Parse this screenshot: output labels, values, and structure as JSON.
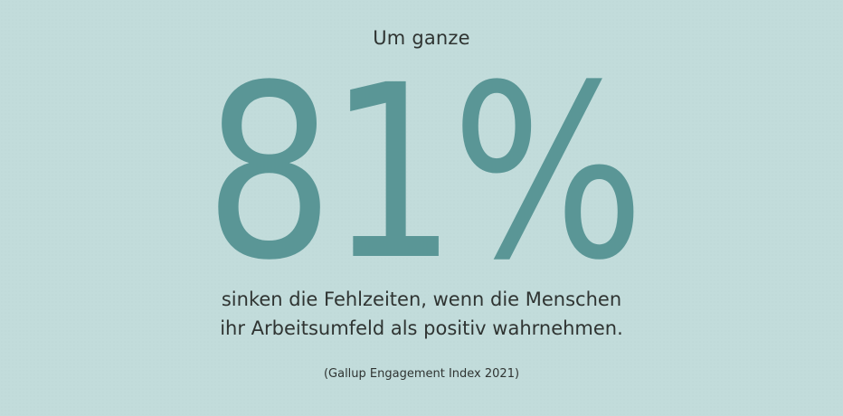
{
  "headline_intro": "Um ganze",
  "stat_value": "81%",
  "claim_line_1": "sinken die Fehlzeiten, wenn die Menschen",
  "claim_line_2": "ihr Arbeitsumfeld als positiv wahrnehmen.",
  "source": "(Gallup Engagement Index 2021)",
  "colors": {
    "background": "#c2dcdb",
    "accent": "#5a9696",
    "text": "#2f3432"
  }
}
